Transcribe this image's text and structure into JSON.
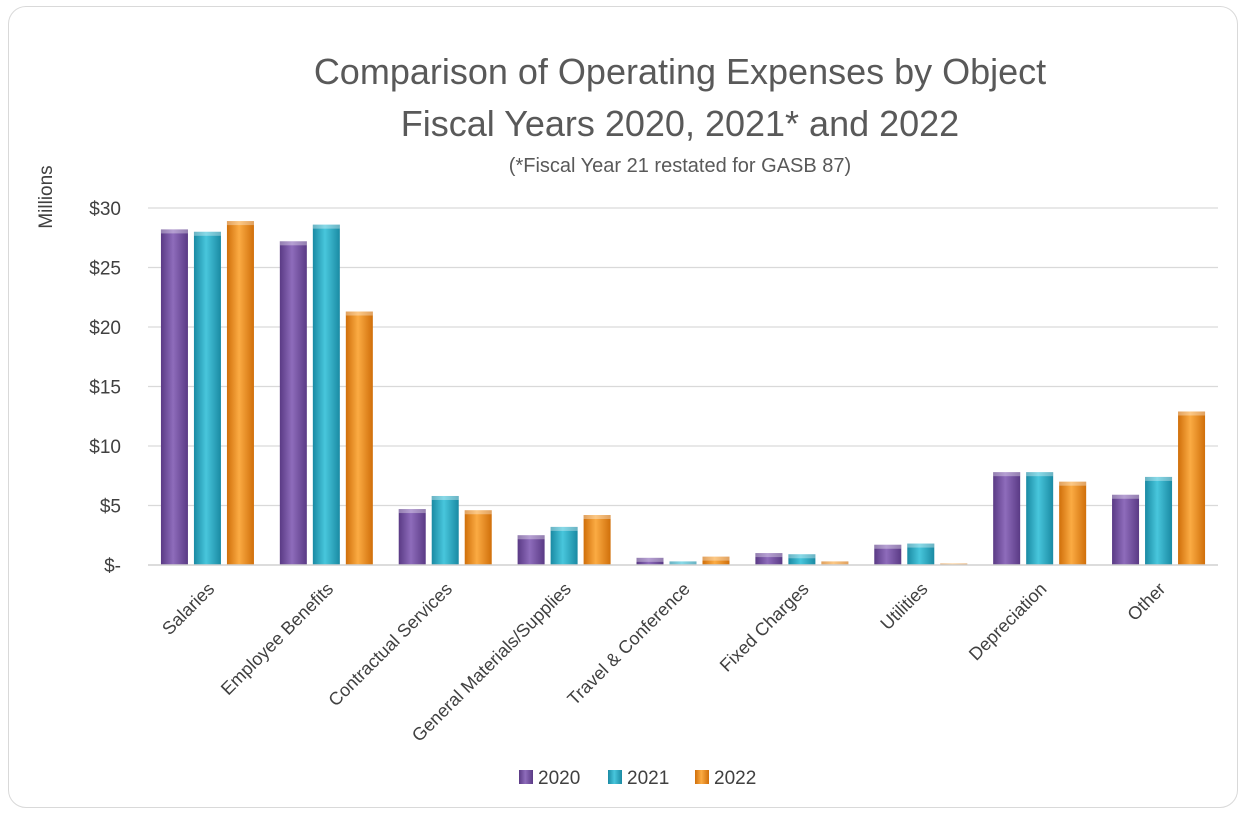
{
  "chart_data": {
    "type": "bar",
    "title": "Comparison of Operating Expenses by Object",
    "title_line2": "Fiscal Years 2020, 2021* and 2022",
    "subtitle": "(*Fiscal Year 21 restated for GASB 87)",
    "ylabel": "Millions",
    "xlabel": "",
    "ylim": [
      0,
      30
    ],
    "yticks": [
      {
        "value": 0,
        "label": "$-"
      },
      {
        "value": 5,
        "label": "$5"
      },
      {
        "value": 10,
        "label": "$10"
      },
      {
        "value": 15,
        "label": "$15"
      },
      {
        "value": 20,
        "label": "$20"
      },
      {
        "value": 25,
        "label": "$25"
      },
      {
        "value": 30,
        "label": "$30"
      }
    ],
    "grid": true,
    "legend_position": "bottom",
    "categories": [
      "Salaries",
      "Employee Benefits",
      "Contractual Services",
      "General Materials/Supplies",
      "Travel & Conference",
      "Fixed Charges",
      "Utilities",
      "Depreciation",
      "Other"
    ],
    "series": [
      {
        "name": "2020",
        "color": "#7a54a8",
        "values": [
          28.2,
          27.2,
          4.7,
          2.5,
          0.6,
          1.0,
          1.7,
          7.8,
          5.9
        ]
      },
      {
        "name": "2021",
        "color": "#2fb0c8",
        "values": [
          28.0,
          28.6,
          5.8,
          3.2,
          0.3,
          0.9,
          1.8,
          7.8,
          7.4
        ]
      },
      {
        "name": "2022",
        "color": "#f0901e",
        "values": [
          28.9,
          21.3,
          4.6,
          4.2,
          0.7,
          0.3,
          0.1,
          7.0,
          12.9
        ]
      }
    ]
  }
}
